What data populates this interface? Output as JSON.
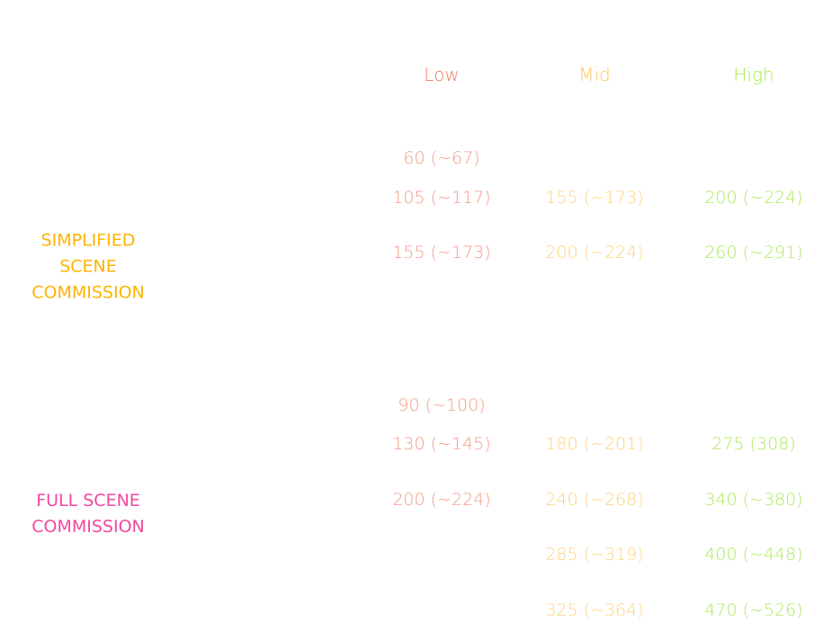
{
  "table": {
    "columns": [
      "Low",
      "Mid",
      "High"
    ],
    "sections": [
      {
        "label": [
          "SIMPLIFIED",
          "SCENE",
          "COMMISSION"
        ],
        "rows": [
          [
            "60 (~67)",
            null,
            null
          ],
          [
            "105 (~117)",
            "155 (~173)",
            "200 (~224)"
          ],
          [
            "155 (~173)",
            "200 (~224)",
            "260 (~291)"
          ]
        ]
      },
      {
        "label": [
          "FULL SCENE",
          "COMMISSION"
        ],
        "rows": [
          [
            "90 (~100)",
            null,
            null
          ],
          [
            "130 (~145)",
            "180 (~201)",
            "275 (308)"
          ],
          [
            "200 (~224)",
            "240 (~268)",
            "340 (~380)"
          ],
          [
            null,
            "285 (~319)",
            "400 (~448)"
          ],
          [
            null,
            "325 (~364)",
            "470 (~526)"
          ]
        ]
      }
    ]
  }
}
